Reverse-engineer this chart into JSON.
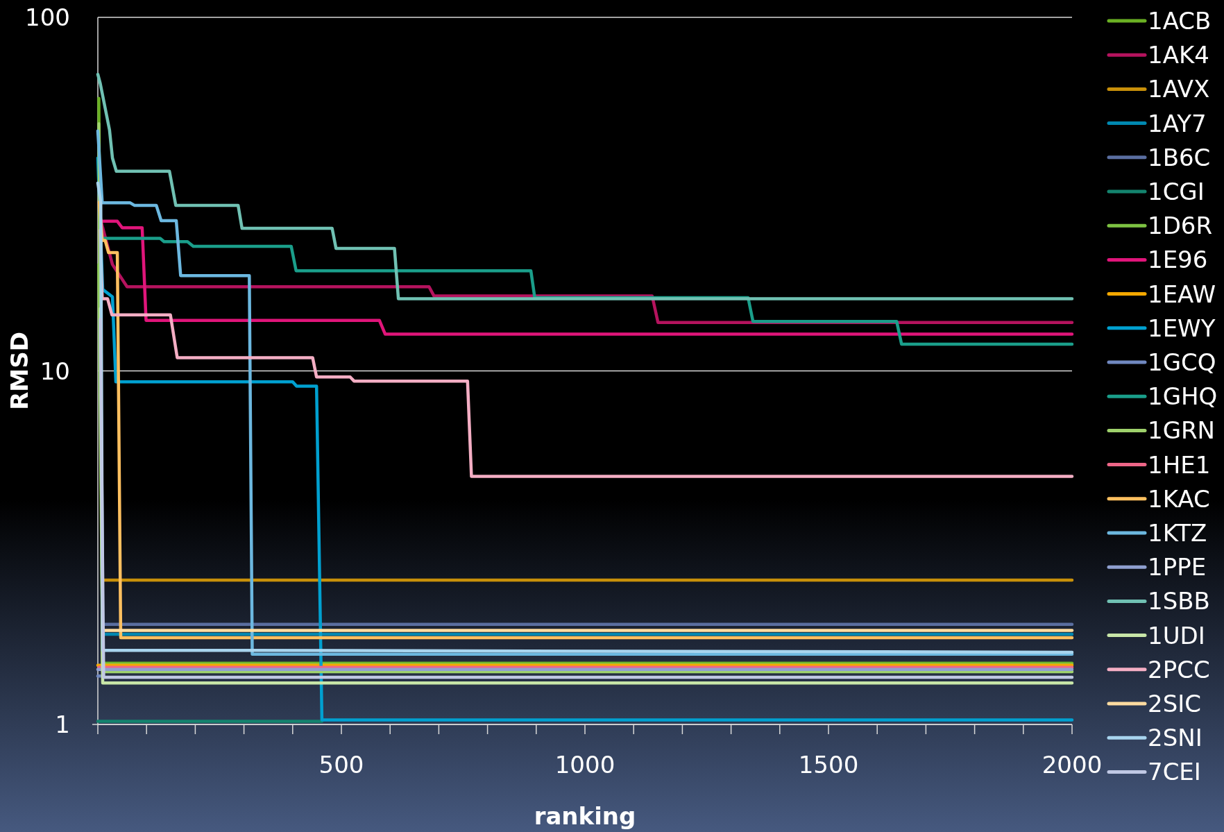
{
  "chart_data": {
    "type": "line",
    "xlabel": "ranking",
    "ylabel": "RMSD",
    "log": "y",
    "grid": "y",
    "legend": "right",
    "line_style": "solid",
    "marker": "none",
    "xlim": [
      0,
      2000
    ],
    "ylim": [
      1,
      100
    ],
    "xticks": [
      {
        "value": 0,
        "label": null
      },
      {
        "value": 100,
        "label": null
      },
      {
        "value": 200,
        "label": null
      },
      {
        "value": 300,
        "label": null
      },
      {
        "value": 400,
        "label": null
      },
      500,
      {
        "value": 600,
        "label": null
      },
      {
        "value": 700,
        "label": null
      },
      {
        "value": 800,
        "label": null
      },
      {
        "value": 900,
        "label": null
      },
      1000,
      {
        "value": 1100,
        "label": null
      },
      {
        "value": 1200,
        "label": null
      },
      {
        "value": 1300,
        "label": null
      },
      {
        "value": 1400,
        "label": null
      },
      1500,
      {
        "value": 1600,
        "label": null
      },
      {
        "value": 1700,
        "label": null
      },
      {
        "value": 1800,
        "label": null
      },
      {
        "value": 1900,
        "label": null
      },
      2000
    ],
    "yticks": [
      1,
      10,
      100
    ],
    "series": [
      {
        "name": "1ACB",
        "color": "#6ab023",
        "x": [
          2,
          10,
          2000
        ],
        "values": [
          59,
          1.49,
          1.49
        ]
      },
      {
        "name": "1AK4",
        "color": "#b5135e",
        "x": [
          5,
          30,
          60,
          680,
          690,
          1138,
          1150,
          2000
        ],
        "values": [
          27,
          20,
          17.3,
          17.3,
          16.3,
          16.3,
          13.7,
          13.7
        ]
      },
      {
        "name": "1AVX",
        "color": "#c8900a",
        "x": [
          10,
          2000
        ],
        "values": [
          2.56,
          2.56
        ]
      },
      {
        "name": "1AY7",
        "color": "#0088b0",
        "x": [
          10,
          2000
        ],
        "values": [
          1.8,
          1.8
        ]
      },
      {
        "name": "1B6C",
        "color": "#5a6ea0",
        "x": [
          10,
          2000
        ],
        "values": [
          1.92,
          1.92
        ]
      },
      {
        "name": "1CGI",
        "color": "#14846e",
        "x": [
          0,
          460
        ],
        "values": [
          1.02,
          1.02
        ]
      },
      {
        "name": "1D6R",
        "color": "#7dc242",
        "x": [
          2,
          10,
          2000
        ],
        "values": [
          20,
          1.48,
          1.48
        ]
      },
      {
        "name": "1E96",
        "color": "#e0157a",
        "x": [
          9,
          40,
          50,
          91,
          99,
          578,
          590,
          2000
        ],
        "values": [
          26.5,
          26.5,
          25.4,
          25.4,
          13.9,
          13.9,
          12.7,
          12.7
        ]
      },
      {
        "name": "1EAW",
        "color": "#f5a800",
        "x": [
          0,
          2000
        ],
        "values": [
          1.47,
          1.47
        ]
      },
      {
        "name": "1EWY",
        "color": "#00a0d0",
        "x": [
          0,
          10,
          30,
          37,
          400,
          408,
          449,
          460,
          2000
        ],
        "values": [
          40,
          17,
          16.2,
          9.31,
          9.31,
          9.05,
          9.05,
          1.03,
          1.03
        ]
      },
      {
        "name": "1GCQ",
        "color": "#7088c0",
        "x": [
          0,
          10
        ],
        "values": [
          1.37,
          1.37
        ]
      },
      {
        "name": "1GHQ",
        "color": "#1a9e8a",
        "x": [
          5,
          128,
          136,
          184,
          196,
          397,
          407,
          889,
          897,
          1335,
          1345,
          1640,
          1650,
          2000
        ],
        "values": [
          23.7,
          23.7,
          23.2,
          23.2,
          22.5,
          22.5,
          19.2,
          19.2,
          16.1,
          16.1,
          13.8,
          13.8,
          11.9,
          11.9
        ]
      },
      {
        "name": "1GRN",
        "color": "#9ed16b",
        "x": [
          2,
          10,
          2000
        ],
        "values": [
          50,
          1.41,
          1.41
        ]
      },
      {
        "name": "1HE1",
        "color": "#ee6688",
        "x": [
          2,
          2000
        ],
        "values": [
          1.45,
          1.45
        ]
      },
      {
        "name": "1KAC",
        "color": "#ffc060",
        "x": [
          3,
          9,
          15,
          22,
          40,
          47,
          2000
        ],
        "values": [
          30,
          23.4,
          23.4,
          21.6,
          21.6,
          1.76,
          1.76
        ]
      },
      {
        "name": "1KTZ",
        "color": "#6cb8e0",
        "x": [
          0,
          9,
          66,
          75,
          120,
          130,
          161,
          170,
          311,
          317,
          2000
        ],
        "values": [
          47.7,
          29.9,
          29.9,
          29.4,
          29.4,
          26.6,
          26.6,
          18.6,
          18.6,
          1.58,
          1.58
        ]
      },
      {
        "name": "1PPE",
        "color": "#8fa0d0",
        "x": [
          0,
          2000
        ],
        "values": [
          1.43,
          1.43
        ]
      },
      {
        "name": "1SBB",
        "color": "#70c1b3",
        "x": [
          0,
          5,
          24,
          30,
          38,
          147,
          160,
          288,
          296,
          481,
          489,
          609,
          617,
          2000
        ],
        "values": [
          69,
          65,
          48,
          40,
          36.7,
          36.7,
          29.4,
          29.4,
          25.3,
          25.3,
          22.2,
          22.2,
          16,
          16
        ]
      },
      {
        "name": "1UDI",
        "color": "#c8e6a8",
        "x": [
          5,
          10,
          2000
        ],
        "values": [
          15,
          1.31,
          1.31
        ]
      },
      {
        "name": "2PCC",
        "color": "#f4aec4",
        "x": [
          5,
          9,
          20,
          29,
          149,
          163,
          441,
          449,
          518,
          526,
          759,
          767,
          2000
        ],
        "values": [
          25,
          16,
          16,
          14.4,
          14.4,
          10.9,
          10.9,
          9.61,
          9.61,
          9.36,
          9.36,
          5.03,
          5.03
        ]
      },
      {
        "name": "2SIC",
        "color": "#ffdca0",
        "x": [
          10,
          2000
        ],
        "values": [
          1.845,
          1.845
        ]
      },
      {
        "name": "2SNI",
        "color": "#a8d4ee",
        "x": [
          0,
          6,
          10,
          317,
          2000
        ],
        "values": [
          34,
          30,
          1.62,
          1.62,
          1.6
        ]
      },
      {
        "name": "7CEI",
        "color": "#c0c8e4",
        "x": [
          5,
          12,
          2000
        ],
        "values": [
          14,
          1.36,
          1.36
        ]
      }
    ]
  }
}
